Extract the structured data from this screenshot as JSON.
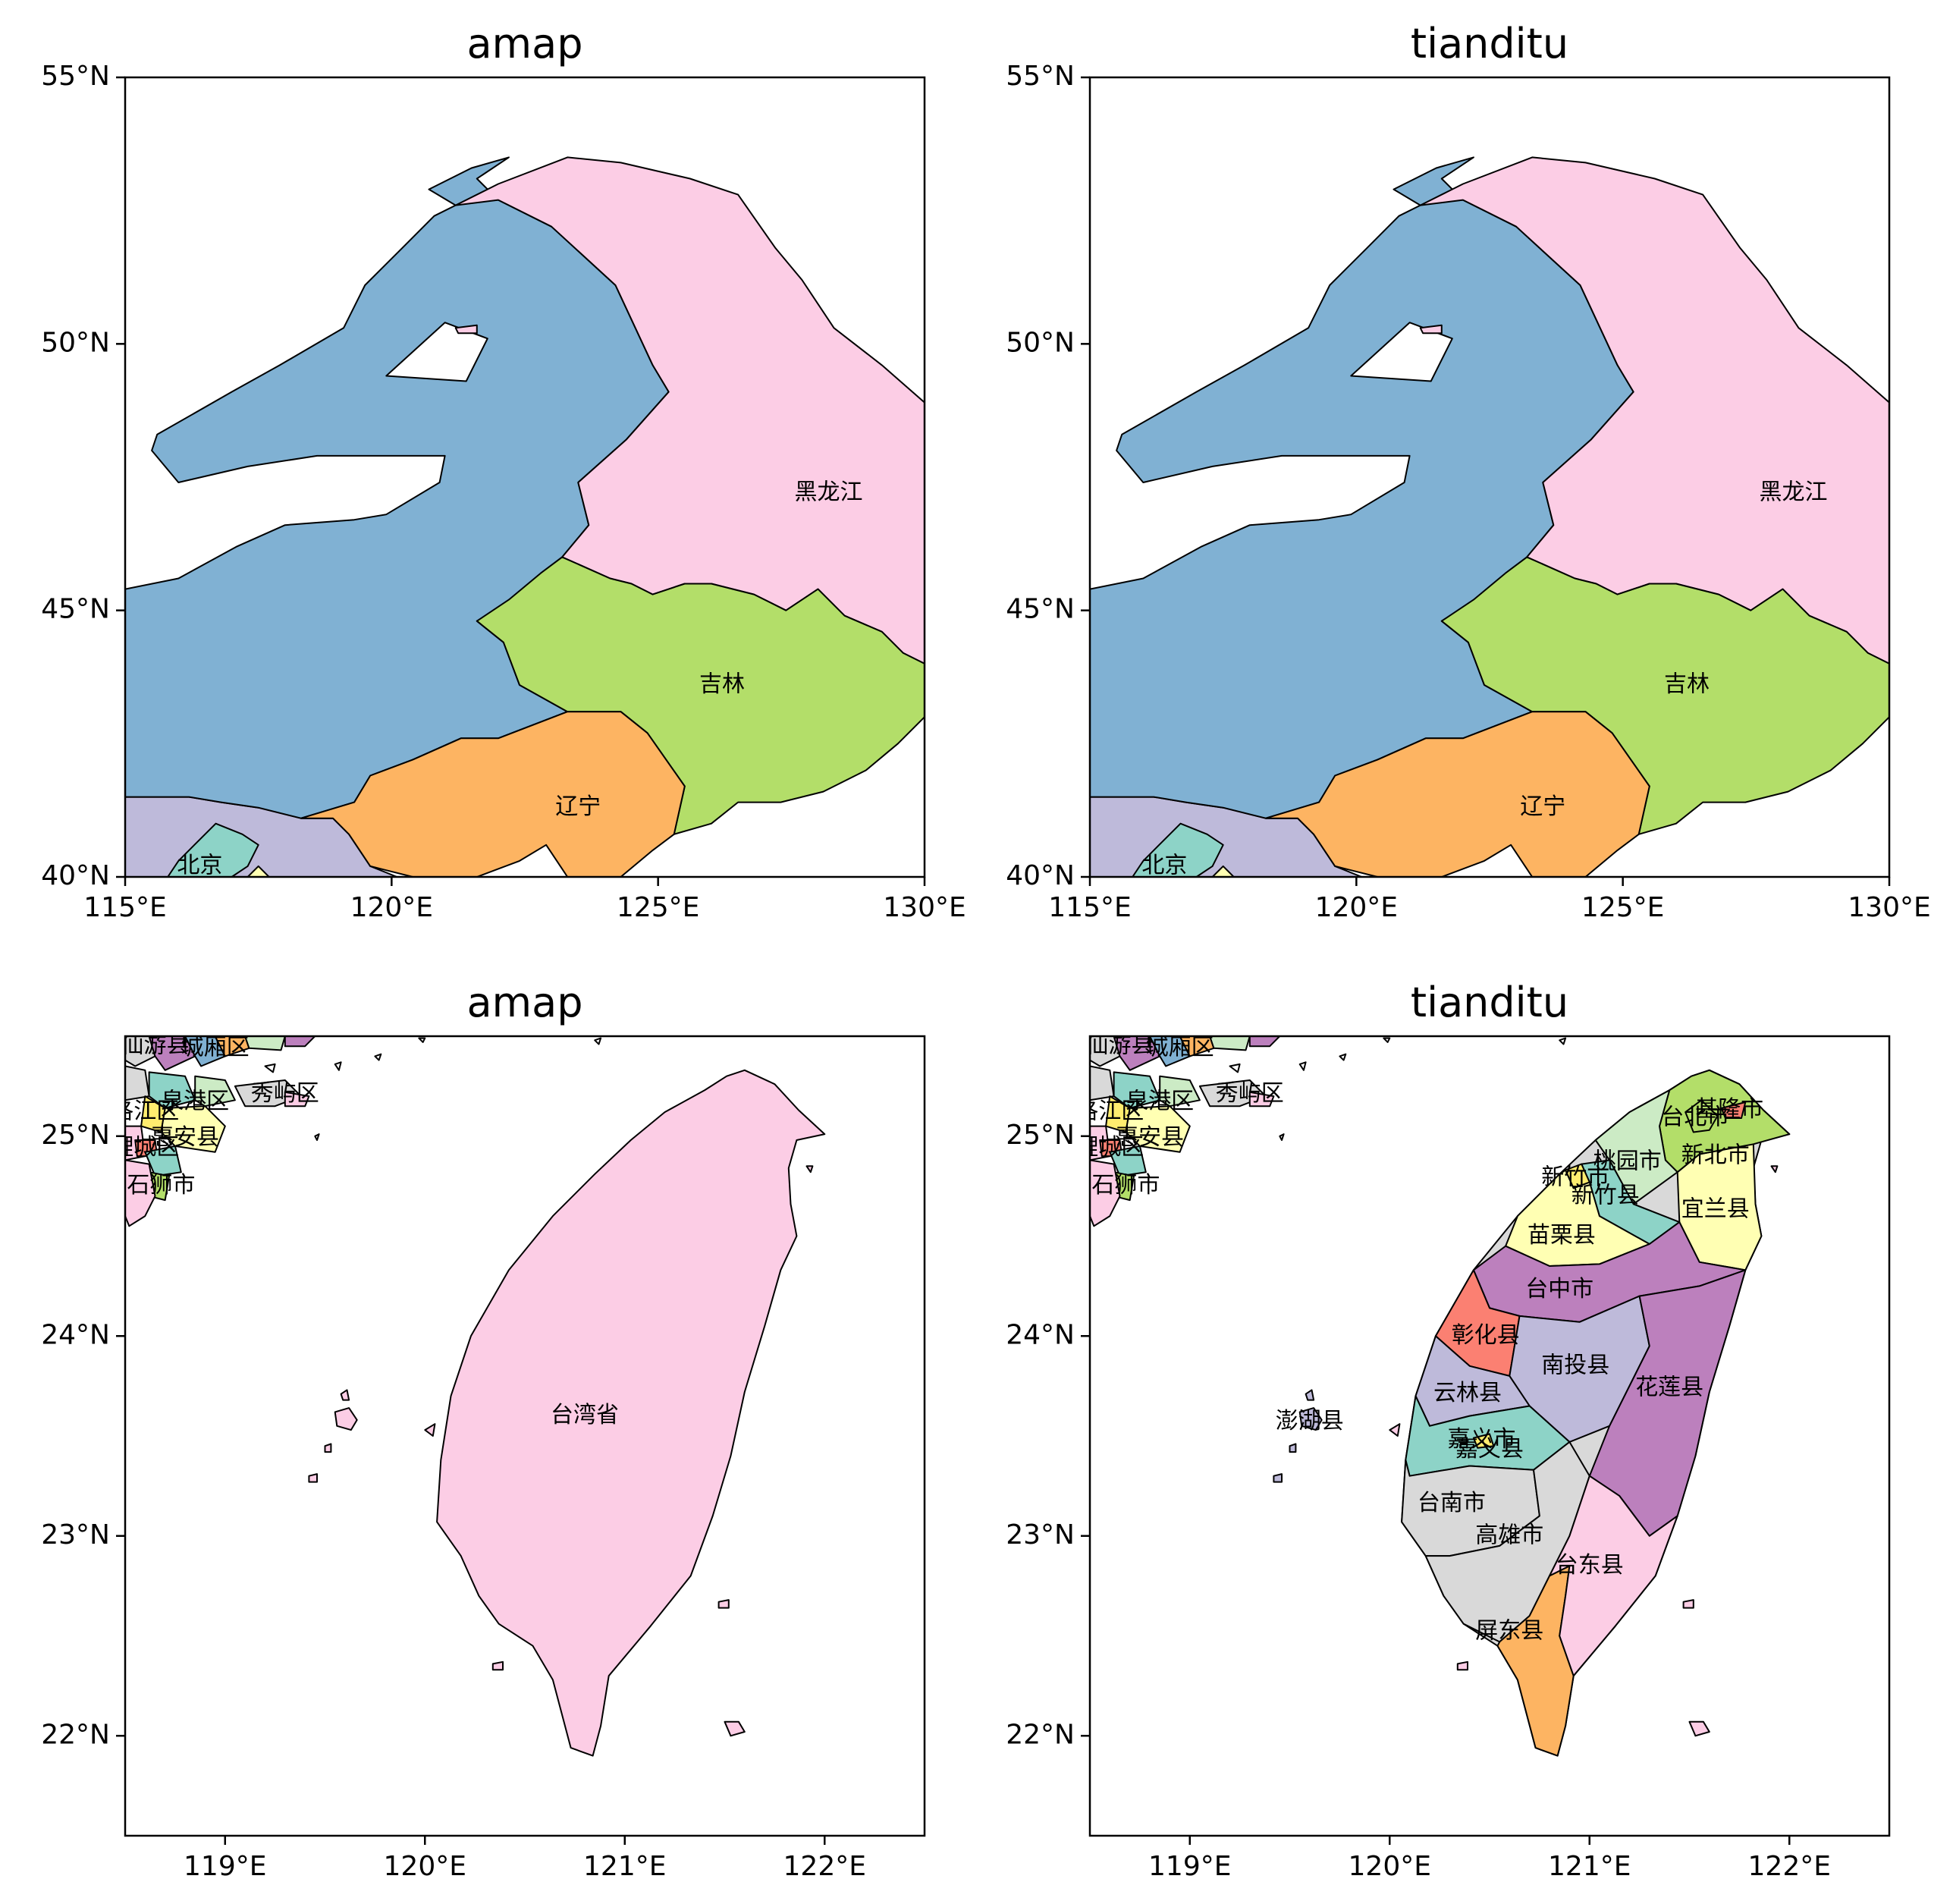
{
  "colors": {
    "blue": "#80b1d3",
    "pink": "#fccde5",
    "green": "#b3de69",
    "orange": "#fdb462",
    "lavender": "#bebada",
    "teal": "#8dd3c7",
    "yellow": "#ffffb3",
    "purple": "#bc80bd",
    "red": "#fb8072",
    "gray": "#d9d9d9",
    "mint": "#ccebc5",
    "gold": "#ffed6f"
  },
  "panels": {
    "top_left": {
      "title": "amap"
    },
    "top_right": {
      "title": "tianditu"
    },
    "bottom_left": {
      "title": "amap"
    },
    "bottom_right": {
      "title": "tianditu"
    }
  },
  "northeast_axes": {
    "lon_range": [
      115,
      130
    ],
    "lat_range": [
      40,
      55
    ],
    "xticks": [
      115,
      120,
      125,
      130
    ],
    "xtick_labels": [
      "115°E",
      "120°E",
      "125°E",
      "130°E"
    ],
    "yticks": [
      40,
      45,
      50,
      55
    ],
    "ytick_labels": [
      "40°N",
      "45°N",
      "50°N",
      "55°N"
    ]
  },
  "taiwan_axes": {
    "lon_range": [
      118.5,
      122.5
    ],
    "lat_range": [
      21.5,
      25.5
    ],
    "xticks": [
      119,
      120,
      121,
      122
    ],
    "xtick_labels": [
      "119°E",
      "120°E",
      "121°E",
      "122°E"
    ],
    "yticks": [
      22,
      23,
      24,
      25
    ],
    "ytick_labels": [
      "22°N",
      "23°N",
      "24°N",
      "25°N"
    ]
  },
  "northeast_labels": [
    {
      "text": "黑龙江",
      "lon": 128.2,
      "lat": 47.2
    },
    {
      "text": "吉林",
      "lon": 126.2,
      "lat": 43.6
    },
    {
      "text": "辽宁",
      "lon": 123.5,
      "lat": 41.3
    },
    {
      "text": "北京",
      "lon": 116.4,
      "lat": 40.2
    }
  ],
  "taiwan_amap_labels": [
    {
      "text": "台湾省",
      "lon": 120.8,
      "lat": 23.6
    },
    {
      "text": "秀屿区",
      "lon": 119.3,
      "lat": 25.21
    },
    {
      "text": "泉港区",
      "lon": 118.85,
      "lat": 25.17
    },
    {
      "text": "惠安县",
      "lon": 118.8,
      "lat": 24.99
    },
    {
      "text": "石狮市",
      "lon": 118.68,
      "lat": 24.75
    },
    {
      "text": "仙游县",
      "lon": 118.65,
      "lat": 25.45
    },
    {
      "text": "城厢区",
      "lon": 118.95,
      "lat": 25.44
    },
    {
      "text": "洛江区",
      "lon": 118.6,
      "lat": 25.12
    },
    {
      "text": "鲤城区",
      "lon": 118.6,
      "lat": 24.94
    }
  ],
  "taiwan_tianditu_labels": [
    {
      "text": "基隆市",
      "lon": 121.7,
      "lat": 25.13
    },
    {
      "text": "台北市",
      "lon": 121.53,
      "lat": 25.09
    },
    {
      "text": "新北市",
      "lon": 121.63,
      "lat": 24.9
    },
    {
      "text": "桃园市",
      "lon": 121.19,
      "lat": 24.87
    },
    {
      "text": "新竹市",
      "lon": 120.93,
      "lat": 24.79
    },
    {
      "text": "新竹县",
      "lon": 121.08,
      "lat": 24.7
    },
    {
      "text": "宜兰县",
      "lon": 121.63,
      "lat": 24.63
    },
    {
      "text": "苗栗县",
      "lon": 120.86,
      "lat": 24.5
    },
    {
      "text": "台中市",
      "lon": 120.85,
      "lat": 24.23
    },
    {
      "text": "彰化县",
      "lon": 120.48,
      "lat": 24.0
    },
    {
      "text": "南投县",
      "lon": 120.93,
      "lat": 23.85
    },
    {
      "text": "花莲县",
      "lon": 121.4,
      "lat": 23.74
    },
    {
      "text": "云林县",
      "lon": 120.39,
      "lat": 23.71
    },
    {
      "text": "澎湖县",
      "lon": 119.6,
      "lat": 23.57
    },
    {
      "text": "嘉义市",
      "lon": 120.46,
      "lat": 23.48
    },
    {
      "text": "嘉义县",
      "lon": 120.5,
      "lat": 23.43
    },
    {
      "text": "台南市",
      "lon": 120.31,
      "lat": 23.16
    },
    {
      "text": "高雄市",
      "lon": 120.6,
      "lat": 23.0
    },
    {
      "text": "台东县",
      "lon": 121.0,
      "lat": 22.85
    },
    {
      "text": "屏东县",
      "lon": 120.6,
      "lat": 22.52
    },
    {
      "text": "秀屿区",
      "lon": 119.3,
      "lat": 25.21
    },
    {
      "text": "泉港区",
      "lon": 118.85,
      "lat": 25.17
    },
    {
      "text": "惠安县",
      "lon": 118.8,
      "lat": 24.99
    },
    {
      "text": "石狮市",
      "lon": 118.68,
      "lat": 24.75
    },
    {
      "text": "仙游县",
      "lon": 118.65,
      "lat": 25.45
    },
    {
      "text": "城厢区",
      "lon": 118.95,
      "lat": 25.44
    },
    {
      "text": "洛江区",
      "lon": 118.6,
      "lat": 25.12
    },
    {
      "text": "鲤城区",
      "lon": 118.6,
      "lat": 24.94
    }
  ]
}
